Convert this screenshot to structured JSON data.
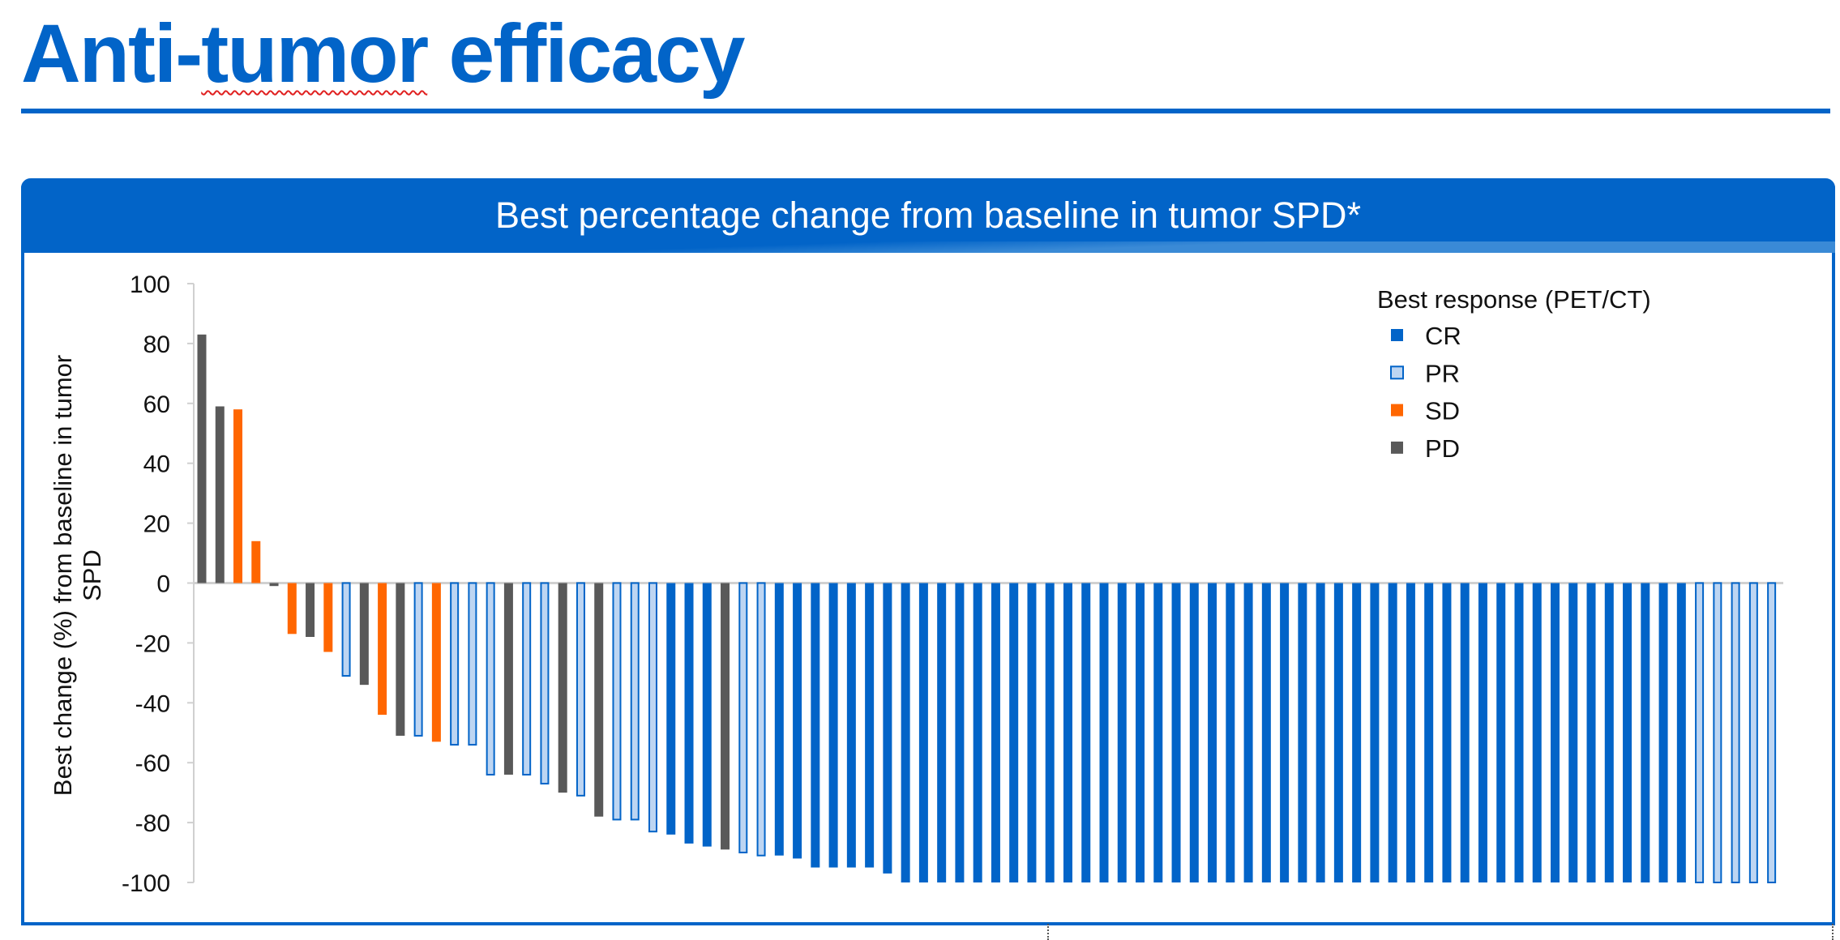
{
  "slide": {
    "title_prefix": "Anti-",
    "title_flagged": "tumor",
    "title_suffix": " efficacy"
  },
  "panel": {
    "header": "Best percentage change from baseline in tumor SPD*"
  },
  "colors": {
    "CR": "#0264C8",
    "PR": "#BDD5F2",
    "PR_edge": "#0264C8",
    "SD": "#FF6600",
    "PD": "#595959",
    "brand": "#0264C8"
  },
  "chart_data": {
    "type": "bar",
    "title": "Best percentage change from baseline in tumor SPD*",
    "xlabel": "",
    "ylabel_lines": [
      "Best change (%) from baseline in tumor",
      "SPD"
    ],
    "ylim": [
      -100,
      100
    ],
    "yticks": [
      "100",
      "80",
      "60",
      "40",
      "20",
      "0",
      "-20",
      "-40",
      "-60",
      "-80",
      "-100"
    ],
    "legend": {
      "title": "Best response (PET/CT)",
      "position": "top-right",
      "entries": [
        "CR",
        "PR",
        "SD",
        "PD"
      ]
    },
    "values": [
      83,
      59,
      58,
      14,
      -1,
      -17,
      -18,
      -23,
      -31,
      -34,
      -44,
      -51,
      -51,
      -53,
      -54,
      -54,
      -64,
      -64,
      -64,
      -67,
      -70,
      -71,
      -78,
      -79,
      -79,
      -83,
      -84,
      -87,
      -88,
      -89,
      -90,
      -91,
      -91,
      -92,
      -95,
      -95,
      -95,
      -95,
      -97,
      -100,
      -100,
      -100,
      -100,
      -100,
      -100,
      -100,
      -100,
      -100,
      -100,
      -100,
      -100,
      -100,
      -100,
      -100,
      -100,
      -100,
      -100,
      -100,
      -100,
      -100,
      -100,
      -100,
      -100,
      -100,
      -100,
      -100,
      -100,
      -100,
      -100,
      -100,
      -100,
      -100,
      -100,
      -100,
      -100,
      -100,
      -100,
      -100,
      -100,
      -100,
      -100,
      -100,
      -100,
      -100,
      -100,
      -100,
      -100,
      -100
    ],
    "response": [
      "PD",
      "PD",
      "SD",
      "SD",
      "PD",
      "SD",
      "PD",
      "SD",
      "PR",
      "PD",
      "SD",
      "PD",
      "PR",
      "SD",
      "PR",
      "PR",
      "PR",
      "PD",
      "PR",
      "PR",
      "PD",
      "PR",
      "PD",
      "PR",
      "PR",
      "PR",
      "CR",
      "CR",
      "CR",
      "PD",
      "PR",
      "PR",
      "CR",
      "CR",
      "CR",
      "CR",
      "CR",
      "CR",
      "CR",
      "CR",
      "CR",
      "CR",
      "CR",
      "CR",
      "CR",
      "CR",
      "CR",
      "CR",
      "CR",
      "CR",
      "CR",
      "CR",
      "CR",
      "CR",
      "CR",
      "CR",
      "CR",
      "CR",
      "CR",
      "CR",
      "CR",
      "CR",
      "CR",
      "CR",
      "CR",
      "CR",
      "CR",
      "CR",
      "CR",
      "CR",
      "CR",
      "CR",
      "CR",
      "CR",
      "CR",
      "CR",
      "CR",
      "CR",
      "CR",
      "CR",
      "CR",
      "CR",
      "CR",
      "PR",
      "PR",
      "PR",
      "PR",
      "PR"
    ]
  }
}
